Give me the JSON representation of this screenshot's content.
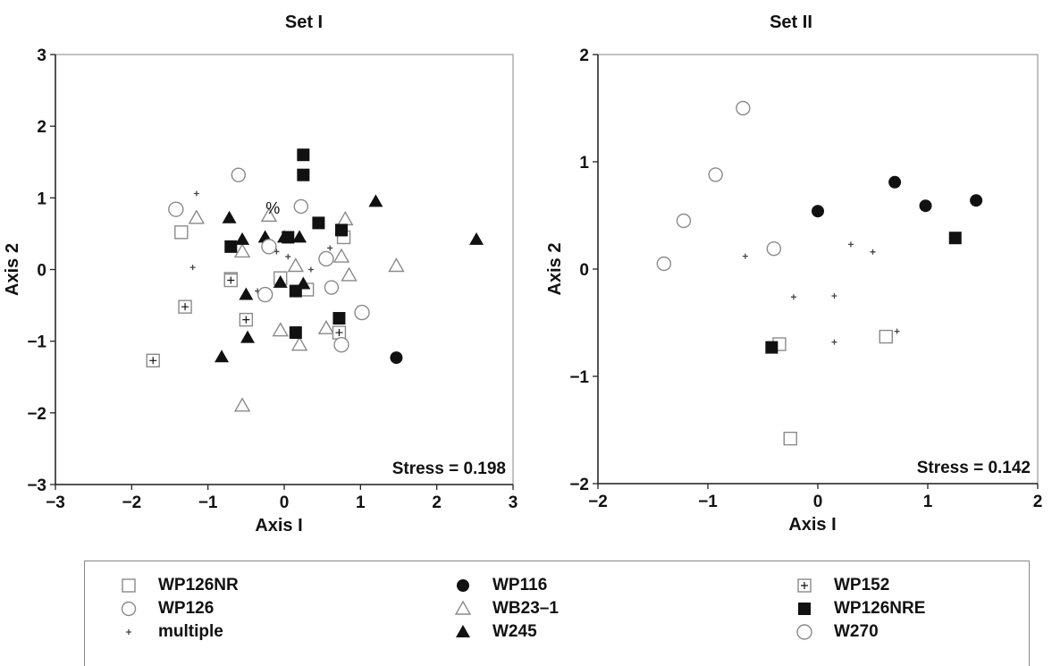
{
  "chart_data": [
    {
      "type": "scatter",
      "title": "Set I",
      "xlabel": "Axis I",
      "ylabel": "Axis 2",
      "xlim": [
        -3,
        3
      ],
      "ylim": [
        -3,
        3
      ],
      "xticks": [
        "−3",
        "−2",
        "−1",
        "0",
        "1",
        "2",
        "3"
      ],
      "yticks": [
        "−3",
        "−2",
        "−1",
        "0",
        "1",
        "2",
        "3"
      ],
      "stress": "Stress = 0.198",
      "annotation": {
        "text": "%",
        "x": -0.15,
        "y": 0.78
      },
      "series": [
        {
          "name": "WP126NR",
          "marker": "square-open",
          "points": [
            [
              -1.35,
              0.52
            ],
            [
              -0.7,
              -0.13
            ],
            [
              -0.05,
              -0.12
            ],
            [
              0.3,
              -0.28
            ],
            [
              0.78,
              0.45
            ]
          ]
        },
        {
          "name": "WP126",
          "marker": "circle-open",
          "points": [
            [
              -0.6,
              1.32
            ],
            [
              0.22,
              0.88
            ],
            [
              0.62,
              -0.25
            ]
          ]
        },
        {
          "name": "multiple",
          "marker": "plus-small",
          "points": [
            [
              -1.15,
              1.06
            ],
            [
              -1.2,
              0.03
            ],
            [
              -0.1,
              0.25
            ],
            [
              0.05,
              0.18
            ],
            [
              0.35,
              0.0
            ],
            [
              0.6,
              0.3
            ],
            [
              -0.35,
              -0.3
            ]
          ]
        },
        {
          "name": "WP116",
          "marker": "circle-filled",
          "points": [
            [
              1.47,
              -1.23
            ]
          ]
        },
        {
          "name": "WB23–1",
          "marker": "triangle-open",
          "points": [
            [
              -1.15,
              0.72
            ],
            [
              -0.55,
              0.25
            ],
            [
              -0.2,
              0.75
            ],
            [
              0.15,
              0.05
            ],
            [
              0.8,
              0.7
            ],
            [
              0.75,
              0.18
            ],
            [
              0.85,
              -0.08
            ],
            [
              1.47,
              0.05
            ],
            [
              0.55,
              -0.82
            ],
            [
              0.2,
              -1.05
            ],
            [
              -0.55,
              -1.9
            ],
            [
              -0.05,
              -0.85
            ]
          ]
        },
        {
          "name": "W245",
          "marker": "triangle-filled",
          "points": [
            [
              -0.72,
              0.72
            ],
            [
              -0.55,
              0.42
            ],
            [
              -0.25,
              0.45
            ],
            [
              0.0,
              0.45
            ],
            [
              0.2,
              0.45
            ],
            [
              1.2,
              0.95
            ],
            [
              2.52,
              0.42
            ],
            [
              -0.48,
              -0.95
            ],
            [
              -0.82,
              -1.22
            ],
            [
              -0.5,
              -0.35
            ],
            [
              -0.05,
              -0.18
            ],
            [
              0.25,
              -0.2
            ]
          ]
        },
        {
          "name": "WP152",
          "marker": "square-plus",
          "points": [
            [
              -1.72,
              -1.27
            ],
            [
              -1.3,
              -0.52
            ],
            [
              -0.7,
              -0.15
            ],
            [
              -0.5,
              -0.7
            ],
            [
              0.72,
              -0.88
            ]
          ]
        },
        {
          "name": "WP126NRE",
          "marker": "square-filled",
          "points": [
            [
              0.25,
              1.6
            ],
            [
              0.25,
              1.32
            ],
            [
              0.45,
              0.65
            ],
            [
              0.75,
              0.55
            ],
            [
              0.05,
              0.45
            ],
            [
              -0.7,
              0.32
            ],
            [
              0.15,
              -0.3
            ],
            [
              0.72,
              -0.68
            ],
            [
              0.15,
              -0.88
            ]
          ]
        },
        {
          "name": "W270",
          "marker": "circle-open-large",
          "points": [
            [
              -1.42,
              0.84
            ],
            [
              -0.2,
              0.32
            ],
            [
              0.75,
              -1.05
            ],
            [
              1.02,
              -0.6
            ],
            [
              -0.25,
              -0.35
            ],
            [
              0.55,
              0.15
            ]
          ]
        }
      ]
    },
    {
      "type": "scatter",
      "title": "Set II",
      "xlabel": "Axis I",
      "ylabel": "Axis 2",
      "xlim": [
        -2,
        2
      ],
      "ylim": [
        -2,
        2
      ],
      "xticks": [
        "−2",
        "−1",
        "0",
        "1",
        "2"
      ],
      "yticks": [
        "−2",
        "−1",
        "0",
        "1",
        "2"
      ],
      "stress": "Stress = 0.142",
      "series": [
        {
          "name": "WP126NR",
          "marker": "square-open",
          "points": [
            [
              -0.35,
              -0.7
            ],
            [
              0.62,
              -0.63
            ],
            [
              -0.25,
              -1.58
            ]
          ]
        },
        {
          "name": "WP126",
          "marker": "circle-open",
          "points": [
            [
              -1.4,
              0.05
            ],
            [
              -1.22,
              0.45
            ],
            [
              -0.93,
              0.88
            ],
            [
              -0.68,
              1.5
            ],
            [
              -0.4,
              0.19
            ]
          ]
        },
        {
          "name": "multiple",
          "marker": "plus-small",
          "points": [
            [
              -0.66,
              0.12
            ],
            [
              -0.22,
              -0.26
            ],
            [
              0.15,
              -0.25
            ],
            [
              0.3,
              0.23
            ],
            [
              0.5,
              0.16
            ],
            [
              0.15,
              -0.68
            ],
            [
              0.72,
              -0.58
            ]
          ]
        },
        {
          "name": "WP116",
          "marker": "circle-filled",
          "points": [
            [
              0.0,
              0.54
            ],
            [
              0.7,
              0.81
            ],
            [
              0.98,
              0.59
            ],
            [
              1.44,
              0.64
            ]
          ]
        },
        {
          "name": "WP126NRE",
          "marker": "square-filled",
          "points": [
            [
              -0.42,
              -0.73
            ],
            [
              1.25,
              0.29
            ]
          ]
        }
      ]
    }
  ],
  "legend": [
    {
      "label": "WP126NR",
      "marker": "square-open"
    },
    {
      "label": "WP126",
      "marker": "circle-open"
    },
    {
      "label": "multiple",
      "marker": "plus-small"
    },
    {
      "label": "WP116",
      "marker": "circle-filled"
    },
    {
      "label": "WB23–1",
      "marker": "triangle-open"
    },
    {
      "label": "W245",
      "marker": "triangle-filled"
    },
    {
      "label": "WP152",
      "marker": "square-plus"
    },
    {
      "label": "WP126NRE",
      "marker": "square-filled"
    },
    {
      "label": "W270",
      "marker": "circle-open-large"
    }
  ],
  "colors": {
    "stroke": "#111111",
    "open_marker": "#8a8a8a",
    "frame": "#999999"
  }
}
